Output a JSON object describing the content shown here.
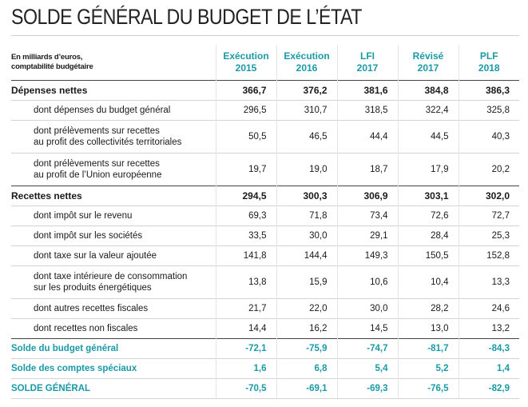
{
  "title": "SOLDE GÉNÉRAL DU BUDGET DE L’ÉTAT",
  "header": {
    "unit_line1": "En milliards d’euros,",
    "unit_line2": "comptabilité budgétaire",
    "columns": [
      {
        "line1": "Exécution",
        "line2": "2015"
      },
      {
        "line1": "Exécution",
        "line2": "2016"
      },
      {
        "line1": "LFI",
        "line2": "2017"
      },
      {
        "line1": "Révisé",
        "line2": "2017"
      },
      {
        "line1": "PLF",
        "line2": "2018"
      }
    ]
  },
  "rows": [
    {
      "label1": "Dépenses nettes",
      "label2": "",
      "values": [
        "366,7",
        "376,2",
        "381,6",
        "384,8",
        "386,3"
      ]
    },
    {
      "label1": "dont dépenses du budget général",
      "label2": "",
      "values": [
        "296,5",
        "310,7",
        "318,5",
        "322,4",
        "325,8"
      ]
    },
    {
      "label1": "dont prélèvements sur recettes",
      "label2": "au profit des collectivités territoriales",
      "values": [
        "50,5",
        "46,5",
        "44,4",
        "44,5",
        "40,3"
      ]
    },
    {
      "label1": "dont prélèvements sur recettes",
      "label2": "au profit de l’Union européenne",
      "values": [
        "19,7",
        "19,0",
        "18,7",
        "17,9",
        "20,2"
      ]
    },
    {
      "label1": "Recettes nettes",
      "label2": "",
      "values": [
        "294,5",
        "300,3",
        "306,9",
        "303,1",
        "302,0"
      ]
    },
    {
      "label1": "dont impôt sur le revenu",
      "label2": "",
      "values": [
        "69,3",
        "71,8",
        "73,4",
        "72,6",
        "72,7"
      ]
    },
    {
      "label1": "dont impôt sur les sociétés",
      "label2": "",
      "values": [
        "33,5",
        "30,0",
        "29,1",
        "28,4",
        "25,3"
      ]
    },
    {
      "label1": "dont taxe sur la valeur ajoutée",
      "label2": "",
      "values": [
        "141,8",
        "144,4",
        "149,3",
        "150,5",
        "152,8"
      ]
    },
    {
      "label1": "dont taxe intérieure de consommation",
      "label2": "sur les produits énergétiques",
      "values": [
        "13,8",
        "15,9",
        "10,6",
        "10,4",
        "13,3"
      ]
    },
    {
      "label1": "dont autres recettes fiscales",
      "label2": "",
      "values": [
        "21,7",
        "22,0",
        "30,0",
        "28,2",
        "24,6"
      ]
    },
    {
      "label1": "dont recettes non fiscales",
      "label2": "",
      "values": [
        "14,4",
        "16,2",
        "14,5",
        "13,0",
        "13,2"
      ]
    },
    {
      "label1": "Solde du budget général",
      "label2": "",
      "values": [
        "-72,1",
        "-75,9",
        "-74,7",
        "-81,7",
        "-84,3"
      ]
    },
    {
      "label1": "Solde des comptes spéciaux",
      "label2": "",
      "values": [
        "1,6",
        "6,8",
        "5,4",
        "5,2",
        "1,4"
      ]
    },
    {
      "label1": "SOLDE GÉNÉRAL",
      "label2": "",
      "values": [
        "-70,5",
        "-69,1",
        "-69,3",
        "-76,5",
        "-82,9"
      ]
    }
  ],
  "colors": {
    "accent": "#1a9aa6",
    "text": "#1a1a1a",
    "rule_dark": "#444444",
    "rule_light": "#d3d3d3"
  }
}
